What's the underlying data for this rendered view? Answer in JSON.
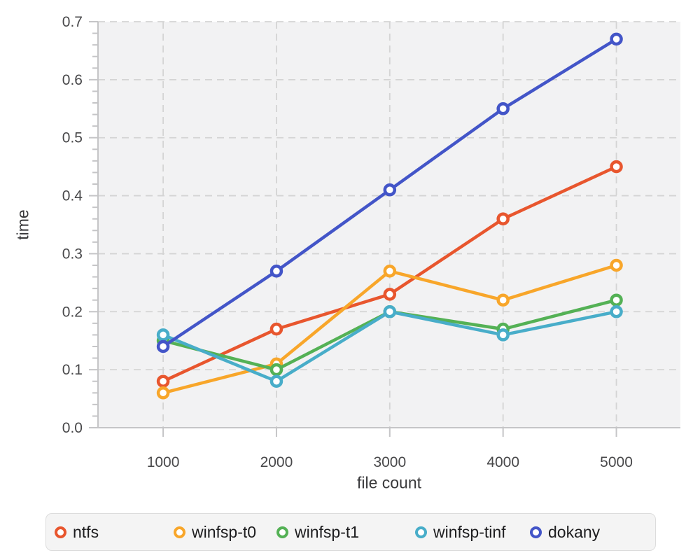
{
  "chart_data": {
    "type": "line",
    "title": "",
    "xlabel": "file count",
    "ylabel": "time",
    "x": [
      1000,
      2000,
      3000,
      4000,
      5000
    ],
    "xticks": [
      1000,
      2000,
      3000,
      4000,
      5000
    ],
    "yticks": [
      0.0,
      0.1,
      0.2,
      0.3,
      0.4,
      0.5,
      0.6,
      0.7
    ],
    "minor_ytick_step": 0.02,
    "xlim": [
      425,
      5565
    ],
    "ylim": [
      0,
      0.7
    ],
    "grid": true,
    "grid_style": "dashed",
    "legend_position": "bottom",
    "series": [
      {
        "name": "ntfs",
        "color": "#e8562e",
        "values": [
          0.08,
          0.17,
          0.23,
          0.36,
          0.45
        ]
      },
      {
        "name": "winfsp-t0",
        "color": "#f8a62a",
        "values": [
          0.06,
          0.11,
          0.27,
          0.22,
          0.28
        ]
      },
      {
        "name": "winfsp-t1",
        "color": "#54b155",
        "values": [
          0.15,
          0.1,
          0.2,
          0.17,
          0.22
        ]
      },
      {
        "name": "winfsp-tinf",
        "color": "#48adc9",
        "values": [
          0.16,
          0.08,
          0.2,
          0.16,
          0.2
        ]
      },
      {
        "name": "dokany",
        "color": "#4355c8",
        "values": [
          0.14,
          0.27,
          0.41,
          0.55,
          0.67
        ]
      }
    ],
    "colors": {
      "plot_bg": "#f2f2f3",
      "grid": "#d4d4d4",
      "axis": "#c5c5c7",
      "tick_text": "#48484a",
      "label_text": "#3a3a3c",
      "legend_text": "#1d1d1f",
      "legend_bg": "#f4f4f4",
      "legend_border": "#dcdcdc"
    }
  }
}
